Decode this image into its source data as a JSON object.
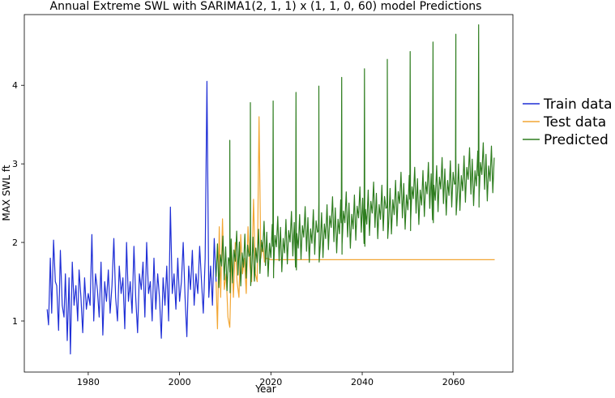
{
  "chart_data": {
    "type": "line",
    "title": "Annual Extreme SWL with SARIMA1(2, 1, 1) x (1, 1, 0, 60) model Predictions",
    "xlabel": "Year",
    "ylabel": "MAX SWL ft",
    "xlim": [
      1966,
      2073
    ],
    "ylim": [
      0.35,
      4.9
    ],
    "xticks": [
      1980,
      2000,
      2020,
      2040,
      2060
    ],
    "yticks": [
      1,
      2,
      3,
      4
    ],
    "grid": false,
    "legend_position": "right-outside",
    "series": [
      {
        "name": "Train data",
        "color": "#1f2fd6",
        "x": [
          1971.0,
          1971.3,
          1971.7,
          1972.0,
          1972.4,
          1972.8,
          1973.1,
          1973.5,
          1973.9,
          1974.3,
          1974.7,
          1975.0,
          1975.4,
          1975.8,
          1976.1,
          1976.5,
          1976.9,
          1977.3,
          1977.7,
          1978.0,
          1978.4,
          1978.8,
          1979.2,
          1979.6,
          1980.0,
          1980.4,
          1980.8,
          1981.2,
          1981.6,
          1982.0,
          1982.4,
          1982.8,
          1983.2,
          1983.6,
          1984.0,
          1984.4,
          1984.8,
          1985.2,
          1985.6,
          1986.0,
          1986.4,
          1986.8,
          1987.2,
          1987.6,
          1988.0,
          1988.4,
          1988.8,
          1989.2,
          1989.6,
          1990.0,
          1990.4,
          1990.8,
          1991.2,
          1991.6,
          1992.0,
          1992.4,
          1992.8,
          1993.2,
          1993.6,
          1994.0,
          1994.4,
          1994.8,
          1995.2,
          1995.6,
          1996.0,
          1996.4,
          1996.8,
          1997.2,
          1997.6,
          1998.0,
          1998.4,
          1998.8,
          1999.2,
          1999.6,
          2000.0,
          2000.4,
          2000.8,
          2001.2,
          2001.6,
          2002.0,
          2002.4,
          2002.8,
          2003.2,
          2003.6,
          2004.0,
          2004.4,
          2004.8,
          2005.2,
          2005.6,
          2006.0,
          2006.4,
          2006.8,
          2007.2,
          2007.6,
          2008.0
        ],
        "y": [
          1.15,
          0.95,
          1.8,
          1.1,
          2.03,
          1.5,
          1.45,
          0.88,
          1.9,
          1.2,
          1.05,
          1.6,
          0.75,
          1.55,
          0.58,
          1.75,
          1.2,
          1.45,
          1.0,
          1.65,
          1.3,
          0.85,
          1.55,
          1.15,
          1.35,
          1.2,
          2.1,
          1.0,
          1.6,
          1.4,
          1.05,
          1.75,
          0.82,
          1.5,
          1.25,
          1.65,
          1.1,
          1.45,
          2.05,
          1.3,
          1.0,
          1.7,
          1.35,
          1.55,
          0.9,
          2.0,
          1.25,
          1.5,
          1.1,
          1.95,
          1.3,
          0.85,
          1.6,
          1.4,
          1.75,
          1.05,
          2.0,
          1.35,
          1.5,
          1.0,
          1.8,
          1.15,
          1.6,
          1.3,
          0.78,
          1.55,
          1.2,
          1.7,
          1.0,
          2.45,
          1.35,
          1.6,
          1.15,
          1.8,
          1.25,
          1.5,
          2.0,
          1.3,
          0.8,
          1.7,
          1.4,
          1.9,
          1.2,
          1.6,
          1.35,
          1.95,
          1.5,
          1.1,
          1.8,
          4.05,
          1.3,
          1.7,
          1.2,
          2.05,
          1.5
        ]
      },
      {
        "name": "Test data",
        "color": "#f2a633",
        "x": [
          2008.0,
          2008.3,
          2008.7,
          2009.0,
          2009.4,
          2009.8,
          2010.2,
          2010.6,
          2011.0,
          2011.4,
          2011.8,
          2012.2,
          2012.6,
          2013.0,
          2013.4,
          2013.8,
          2014.2,
          2014.6,
          2015.0,
          2015.4,
          2015.8,
          2016.2,
          2016.6,
          2017.0,
          2017.4,
          2017.8,
          2018.2,
          2018.6,
          2019.0,
          2020.0,
          2030.0,
          2040.0,
          2050.0,
          2060.0,
          2069.0
        ],
        "y": [
          1.5,
          0.9,
          2.2,
          1.3,
          2.3,
          1.4,
          1.6,
          1.05,
          0.92,
          1.9,
          1.3,
          2.0,
          1.5,
          1.3,
          2.1,
          1.6,
          1.8,
          1.35,
          2.2,
          1.7,
          1.5,
          2.55,
          1.6,
          1.5,
          3.6,
          1.8,
          2.0,
          1.75,
          1.8,
          1.78,
          1.78,
          1.78,
          1.78,
          1.78,
          1.78
        ]
      },
      {
        "name": "Predicted",
        "color": "#2e7d1f",
        "start": 2008.0,
        "end": 2069.0,
        "peaks": [
          [
            2011.0,
            3.3
          ],
          [
            2015.5,
            3.78
          ],
          [
            2020.5,
            3.8
          ],
          [
            2025.5,
            3.91
          ],
          [
            2030.5,
            3.99
          ],
          [
            2035.5,
            4.1
          ],
          [
            2040.5,
            4.21
          ],
          [
            2045.5,
            4.33
          ],
          [
            2050.5,
            4.43
          ],
          [
            2055.5,
            4.55
          ],
          [
            2060.5,
            4.65
          ],
          [
            2065.5,
            4.77
          ]
        ],
        "low_x": [
          2008.0,
          2068.0
        ],
        "low_y": [
          1.3,
          2.5
        ],
        "high_x": [
          2008.0,
          2068.0
        ],
        "high_y": [
          2.05,
          3.3
        ]
      }
    ]
  }
}
